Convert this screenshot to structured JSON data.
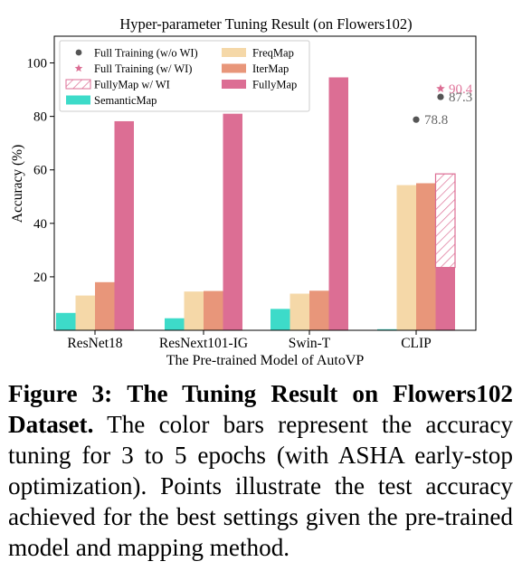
{
  "chart_data": {
    "type": "bar",
    "title": "Hyper-parameter Tuning Result (on Flowers102)",
    "xlabel": "The Pre-trained Model of AutoVP",
    "ylabel": "Accuracy (%)",
    "ylim": [
      0,
      110
    ],
    "yticks": [
      20,
      40,
      60,
      80,
      100
    ],
    "categories": [
      "ResNet18",
      "ResNext101-IG",
      "Swin-T",
      "CLIP"
    ],
    "series": [
      {
        "name": "SemanticMap",
        "color": "#3ddbc9",
        "values": [
          6.5,
          4.5,
          8.0,
          0.4
        ]
      },
      {
        "name": "FreqMap",
        "color": "#f5d8a8",
        "values": [
          13.0,
          14.5,
          13.7,
          54.3
        ]
      },
      {
        "name": "IterMap",
        "color": "#e8967a",
        "values": [
          18.0,
          14.7,
          14.8,
          55.0
        ]
      },
      {
        "name": "FullyMap",
        "color": "#dc6e94",
        "values": [
          78.2,
          81.0,
          94.6,
          23.5
        ]
      }
    ],
    "hatched": {
      "name": "FullyMap w/ WI",
      "category": "CLIP",
      "value": 58.5,
      "color": "#dc6e94"
    },
    "points": [
      {
        "name": "Full Training (w/o WI)",
        "marker": "circle",
        "color": "#555555",
        "values": [
          {
            "category": "CLIP",
            "y": 78.8,
            "label": "78.8"
          },
          {
            "category": "CLIP",
            "y": 87.3,
            "label": "87.3"
          }
        ]
      },
      {
        "name": "Full Training (w/ WI)",
        "marker": "star",
        "color": "#dc6e94",
        "values": [
          {
            "category": "CLIP",
            "y": 90.4,
            "label": "90.4"
          }
        ]
      }
    ],
    "legend": {
      "placement": "top-left",
      "entries": [
        {
          "label": "Full Training (w/o WI)",
          "kind": "circle",
          "color": "#555555"
        },
        {
          "label": "Full Training (w/ WI)",
          "kind": "star",
          "color": "#dc6e94"
        },
        {
          "label": "FullyMap w/ WI",
          "kind": "hatch",
          "color": "#dc6e94"
        },
        {
          "label": "SemanticMap",
          "kind": "patch",
          "color": "#3ddbc9"
        },
        {
          "label": "FreqMap",
          "kind": "patch",
          "color": "#f5d8a8"
        },
        {
          "label": "IterMap",
          "kind": "patch",
          "color": "#e8967a"
        },
        {
          "label": "FullyMap",
          "kind": "patch",
          "color": "#dc6e94"
        }
      ]
    },
    "grid": false
  },
  "caption": {
    "label": "Figure 3:",
    "title": "The Tuning Result on Flowers102 Dataset.",
    "text": "The color bars represent the accuracy tuning for 3 to 5 epochs (with ASHA early-stop optimization). Points illustrate the test accuracy achieved for the best settings given the pre-trained model and mapping method."
  }
}
